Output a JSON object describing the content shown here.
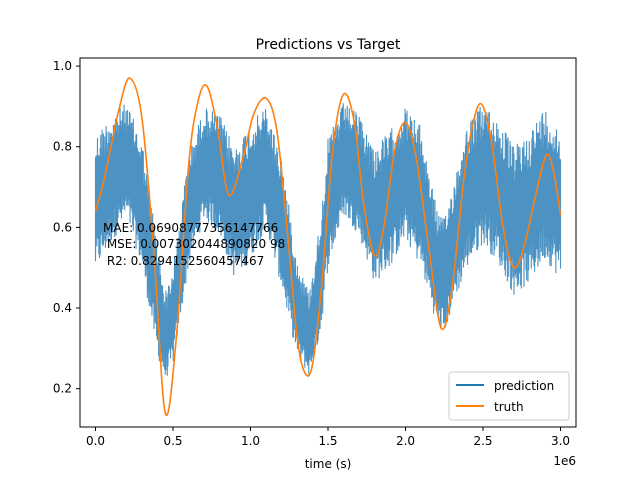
{
  "chart_data": {
    "type": "line",
    "title": "Predictions vs Target",
    "xlabel": "time (s)",
    "x_offset_label": "1e6",
    "ylabel": "",
    "xlim": [
      -100000,
      3100000
    ],
    "ylim": [
      0.105,
      1.02
    ],
    "x_ticks": [
      0,
      500000,
      1000000,
      1500000,
      2000000,
      2500000,
      3000000
    ],
    "x_tick_labels": [
      "0.0",
      "0.5",
      "1.0",
      "1.5",
      "2.0",
      "2.5",
      "3.0"
    ],
    "y_ticks": [
      0.2,
      0.4,
      0.6,
      0.8,
      1.0
    ],
    "y_tick_labels": [
      "0.2",
      "0.4",
      "0.6",
      "0.8",
      "1.0"
    ],
    "legend_position": "lower-right",
    "grid": false,
    "annotation_lines": [
      "MAE: 0.06908777356147766",
      " MSE: 0.007302044890820 98",
      " R2: 0.8294152560457467"
    ],
    "series": [
      {
        "name": "prediction",
        "color": "#1f77b4",
        "style": "noisy band",
        "x": [
          0,
          100000,
          200000,
          300000,
          400000,
          450000,
          500000,
          600000,
          700000,
          800000,
          900000,
          1000000,
          1100000,
          1200000,
          1300000,
          1380000,
          1450000,
          1500000,
          1600000,
          1700000,
          1800000,
          1900000,
          2000000,
          2100000,
          2200000,
          2250000,
          2300000,
          2400000,
          2500000,
          2600000,
          2700000,
          2800000,
          2900000,
          3000000
        ],
        "upper": [
          0.83,
          0.88,
          0.91,
          0.82,
          0.56,
          0.44,
          0.5,
          0.78,
          0.9,
          0.88,
          0.8,
          0.86,
          0.9,
          0.78,
          0.52,
          0.44,
          0.62,
          0.82,
          0.91,
          0.88,
          0.8,
          0.84,
          0.9,
          0.85,
          0.65,
          0.62,
          0.7,
          0.86,
          0.91,
          0.87,
          0.8,
          0.84,
          0.9,
          0.84
        ],
        "lower": [
          0.49,
          0.56,
          0.62,
          0.5,
          0.28,
          0.22,
          0.26,
          0.5,
          0.62,
          0.58,
          0.47,
          0.52,
          0.6,
          0.45,
          0.28,
          0.23,
          0.33,
          0.5,
          0.63,
          0.58,
          0.46,
          0.5,
          0.57,
          0.5,
          0.36,
          0.33,
          0.4,
          0.5,
          0.56,
          0.51,
          0.43,
          0.46,
          0.52,
          0.47
        ]
      },
      {
        "name": "truth",
        "color": "#ff7f0e",
        "x": [
          0,
          50000,
          100000,
          150000,
          220000,
          300000,
          380000,
          450000,
          520000,
          600000,
          660000,
          720000,
          790000,
          860000,
          950000,
          1020000,
          1100000,
          1170000,
          1240000,
          1300000,
          1350000,
          1400000,
          1460000,
          1530000,
          1600000,
          1670000,
          1730000,
          1800000,
          1860000,
          1930000,
          2000000,
          2070000,
          2150000,
          2230000,
          2300000,
          2380000,
          2450000,
          2500000,
          2560000,
          2630000,
          2700000,
          2770000,
          2840000,
          2910000,
          2960000,
          3000000
        ],
        "y": [
          0.64,
          0.71,
          0.8,
          0.89,
          0.97,
          0.87,
          0.52,
          0.14,
          0.32,
          0.75,
          0.91,
          0.95,
          0.84,
          0.68,
          0.77,
          0.88,
          0.92,
          0.84,
          0.58,
          0.33,
          0.24,
          0.26,
          0.46,
          0.79,
          0.93,
          0.86,
          0.66,
          0.53,
          0.6,
          0.79,
          0.86,
          0.77,
          0.55,
          0.35,
          0.45,
          0.73,
          0.88,
          0.9,
          0.8,
          0.6,
          0.5,
          0.56,
          0.68,
          0.78,
          0.73,
          0.63
        ]
      }
    ]
  }
}
